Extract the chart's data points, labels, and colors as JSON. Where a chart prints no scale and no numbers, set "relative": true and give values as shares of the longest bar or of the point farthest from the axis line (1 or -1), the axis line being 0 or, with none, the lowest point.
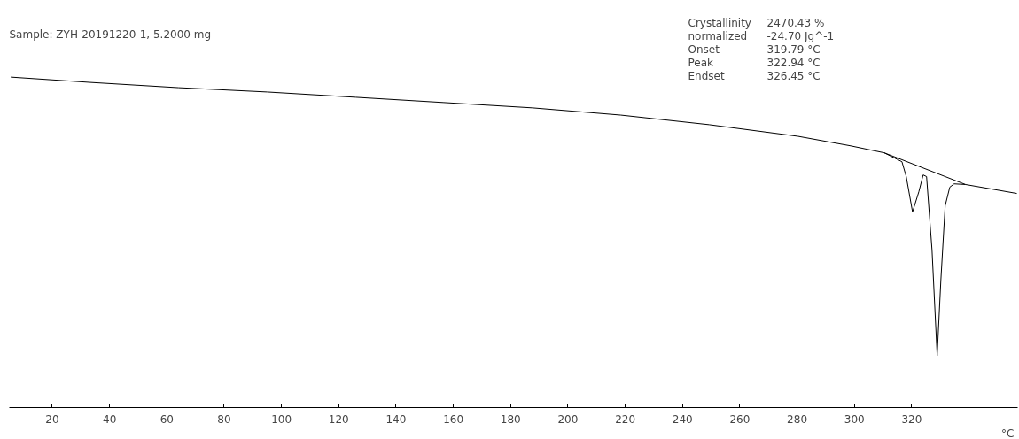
{
  "chart_data": {
    "type": "line",
    "relative": true,
    "xlabel": "°C",
    "xlim": [
      5,
      357
    ],
    "xticks": [
      20,
      40,
      60,
      80,
      100,
      120,
      140,
      160,
      180,
      200,
      220,
      240,
      260,
      280,
      300,
      320
    ],
    "grid": false,
    "marker": "none",
    "line_style": "solid",
    "annotations": [
      "Sample: ZYH-20191220-1, 5.2000 mg",
      "Crystallinity\t2470.43 %",
      " normalized\t-24.70 Jg^-1",
      "Onset\t319.79 °C",
      "Peak\t322.94 °C",
      "Endset\t326.45 °C"
    ],
    "series": [
      {
        "color": "#000000",
        "x": [
          5.5,
          33.3,
          64.1,
          95.0,
          125.9,
          156.7,
          187.6,
          218.5,
          249.3,
          280.2,
          298.7,
          310.4,
          316.6,
          318.1,
          320.3,
          322.5,
          324.0,
          325.2,
          327.1,
          328.9,
          330.2,
          331.7,
          333.3,
          334.8,
          338.8,
          348.1,
          356.7
        ],
        "values": [
          1.0,
          0.984,
          0.968,
          0.955,
          0.939,
          0.923,
          0.907,
          0.885,
          0.856,
          0.821,
          0.792,
          0.771,
          0.744,
          0.699,
          0.592,
          0.653,
          0.704,
          0.699,
          0.477,
          0.157,
          0.387,
          0.611,
          0.667,
          0.677,
          0.675,
          0.661,
          0.648
        ]
      },
      {
        "color": "#000000",
        "x": [
          310.4,
          338.8
        ],
        "values": [
          0.771,
          0.675
        ]
      }
    ]
  }
}
